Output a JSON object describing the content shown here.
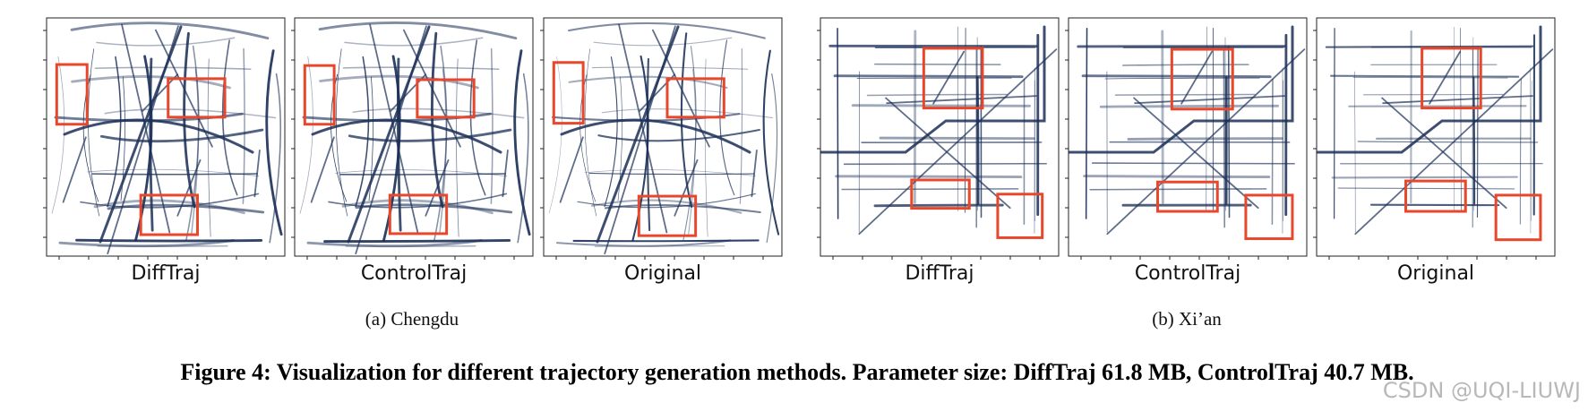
{
  "panels": [
    {
      "label": "DiffTraj"
    },
    {
      "label": "ControlTraj"
    },
    {
      "label": "Original"
    },
    {
      "label": "DiffTraj"
    },
    {
      "label": "ControlTraj"
    },
    {
      "label": "Original"
    }
  ],
  "subfigures": [
    {
      "caption": "(a)  Chengdu"
    },
    {
      "caption": "(b)  Xi’an"
    }
  ],
  "figure_caption": "Figure 4: Visualization for different trajectory generation methods. Parameter size: DiffTraj 61.8 MB, ControlTraj 40.7 MB.",
  "watermark": "CSDN @UQI-LIUWJ"
}
